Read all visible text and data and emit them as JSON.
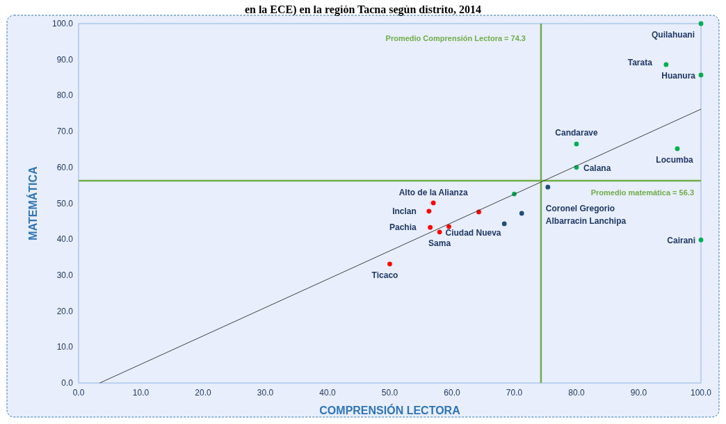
{
  "chart_data": {
    "type": "scatter",
    "title": "en la ECE) en la región Tacna según distrito, 2014",
    "xlabel": "COMPRENSIÓN LECTORA",
    "ylabel": "MATEMÁTICA",
    "xlim": [
      0,
      100
    ],
    "ylim": [
      0,
      100
    ],
    "xticks": [
      {
        "value": 0,
        "label": "0.0"
      },
      {
        "value": 10,
        "label": "10.0"
      },
      {
        "value": 20,
        "label": "20.0"
      },
      {
        "value": 30,
        "label": "30.0"
      },
      {
        "value": 40,
        "label": "40.0"
      },
      {
        "value": 50,
        "label": "50.0"
      },
      {
        "value": 60,
        "label": "60.0"
      },
      {
        "value": 70,
        "label": "70.0"
      },
      {
        "value": 80,
        "label": "80.0"
      },
      {
        "value": 90,
        "label": "90.0"
      },
      {
        "value": 100,
        "label": "100.0"
      }
    ],
    "yticks": [
      {
        "value": 0,
        "label": "0.0"
      },
      {
        "value": 10,
        "label": "10.0"
      },
      {
        "value": 20,
        "label": "20.0"
      },
      {
        "value": 30,
        "label": "30.0"
      },
      {
        "value": 40,
        "label": "40.0"
      },
      {
        "value": 50,
        "label": "50.0"
      },
      {
        "value": 60,
        "label": "60.0"
      },
      {
        "value": 70,
        "label": "70.0"
      },
      {
        "value": 80,
        "label": "80.0"
      },
      {
        "value": 90,
        "label": "90.0"
      },
      {
        "value": 100,
        "label": "100.0"
      }
    ],
    "grid": false,
    "marker": "circle",
    "series": [
      {
        "color": "#ff0000",
        "x": [
          50.0,
          56.5,
          56.3,
          57.0,
          58.0,
          59.5,
          64.3
        ],
        "values": [
          33.1,
          43.3,
          47.8,
          50.1,
          42.0,
          43.5,
          47.6
        ]
      },
      {
        "color": "#1f4e79",
        "x": [
          68.4,
          71.2,
          75.4
        ],
        "values": [
          44.3,
          47.2,
          54.5
        ]
      },
      {
        "color": "#00b050",
        "x": [
          70.0,
          80.0,
          80.0,
          96.2,
          100,
          94.4,
          100,
          100
        ],
        "values": [
          52.6,
          60.0,
          66.5,
          65.2,
          85.7,
          88.6,
          100,
          39.8
        ]
      },
      {
        "type": "line",
        "color": "#404040",
        "marker": "none",
        "x": [
          3.4,
          100
        ],
        "values": [
          0,
          76.2
        ]
      }
    ],
    "ref_lines": [
      {
        "axis": "x",
        "value": 74.3,
        "label": "Promedio Comprensión Lectora = 74.3",
        "color": "#70ad47"
      },
      {
        "axis": "y",
        "value": 56.3,
        "label": "Promedio matemática = 56.3",
        "color": "#70ad47"
      }
    ],
    "annotations": [
      {
        "text": "Quilahuani",
        "x": 100,
        "y": 100
      },
      {
        "text": "Tarata",
        "x": 94.4,
        "y": 88.6
      },
      {
        "text": "Huanura",
        "x": 100,
        "y": 85.7
      },
      {
        "text": "Candarave",
        "x": 80.0,
        "y": 66.5
      },
      {
        "text": "Calana",
        "x": 80.0,
        "y": 60.0
      },
      {
        "text": "Locumba",
        "x": 96.2,
        "y": 65.2
      },
      {
        "text": "Coronel Gregorio Albarracin Lanchipa",
        "x": 75.4,
        "y": 54.5
      },
      {
        "text": "Cairani",
        "x": 100,
        "y": 39.8
      },
      {
        "text": "Alto de la Alianza",
        "x": 57.0,
        "y": 50.1
      },
      {
        "text": "Inclan",
        "x": 56.3,
        "y": 47.8
      },
      {
        "text": "Pachia",
        "x": 56.5,
        "y": 43.3
      },
      {
        "text": "Sama",
        "x": 58.0,
        "y": 42.0
      },
      {
        "text": "Ciudad Nueva",
        "x": 59.5,
        "y": 43.5
      },
      {
        "text": "Ticaco",
        "x": 50.0,
        "y": 33.1
      }
    ]
  }
}
